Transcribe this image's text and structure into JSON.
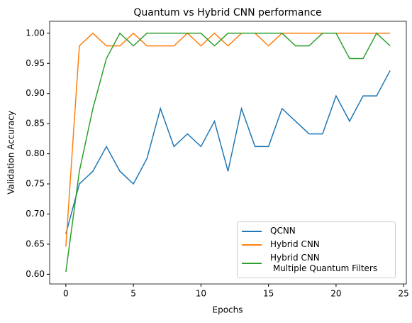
{
  "chart_data": {
    "type": "line",
    "title": "Quantum vs Hybrid CNN performance",
    "x_label": "Epochs",
    "y_label": "Validation Accuracy",
    "x": [
      0,
      1,
      2,
      3,
      4,
      5,
      6,
      7,
      8,
      9,
      10,
      11,
      12,
      13,
      14,
      15,
      16,
      17,
      18,
      19,
      20,
      21,
      22,
      23,
      24
    ],
    "series": [
      {
        "name": "QCNN",
        "color": "#1f77b4",
        "values": [
          0.667,
          0.75,
          0.771,
          0.812,
          0.771,
          0.75,
          0.792,
          0.875,
          0.812,
          0.833,
          0.812,
          0.854,
          0.771,
          0.875,
          0.812,
          0.812,
          0.875,
          0.854,
          0.833,
          0.833,
          0.896,
          0.854,
          0.896,
          0.896,
          0.938
        ]
      },
      {
        "name": "Hybrid CNN",
        "color": "#ff7f0e",
        "values": [
          0.646,
          0.979,
          1.0,
          0.979,
          0.979,
          1.0,
          0.979,
          0.979,
          0.979,
          1.0,
          0.979,
          1.0,
          0.979,
          1.0,
          1.0,
          0.979,
          1.0,
          1.0,
          1.0,
          1.0,
          1.0,
          1.0,
          1.0,
          1.0,
          1.0
        ]
      },
      {
        "name": "Hybrid CNN\n Multiple Quantum Filters",
        "color": "#2ca02c",
        "values": [
          0.604,
          0.771,
          0.875,
          0.958,
          1.0,
          0.979,
          1.0,
          1.0,
          1.0,
          1.0,
          1.0,
          0.979,
          1.0,
          1.0,
          1.0,
          1.0,
          1.0,
          0.979,
          0.979,
          1.0,
          1.0,
          0.958,
          0.958,
          1.0,
          0.979
        ]
      }
    ],
    "xlim": [
      -1.2,
      25.2
    ],
    "xticks": [
      0,
      5,
      10,
      15,
      20,
      25
    ],
    "ylim": [
      0.584,
      1.0198
    ],
    "yticks": [
      {
        "value": 0.6,
        "label": "0.60"
      },
      {
        "value": 0.65,
        "label": "0.65"
      },
      {
        "value": 0.7,
        "label": "0.70"
      },
      {
        "value": 0.75,
        "label": "0.75"
      },
      {
        "value": 0.8,
        "label": "0.80"
      },
      {
        "value": 0.85,
        "label": "0.85"
      },
      {
        "value": 0.9,
        "label": "0.90"
      },
      {
        "value": 0.95,
        "label": "0.95"
      },
      {
        "value": 1.0,
        "label": "1.00"
      }
    ],
    "legend": "lower right"
  }
}
